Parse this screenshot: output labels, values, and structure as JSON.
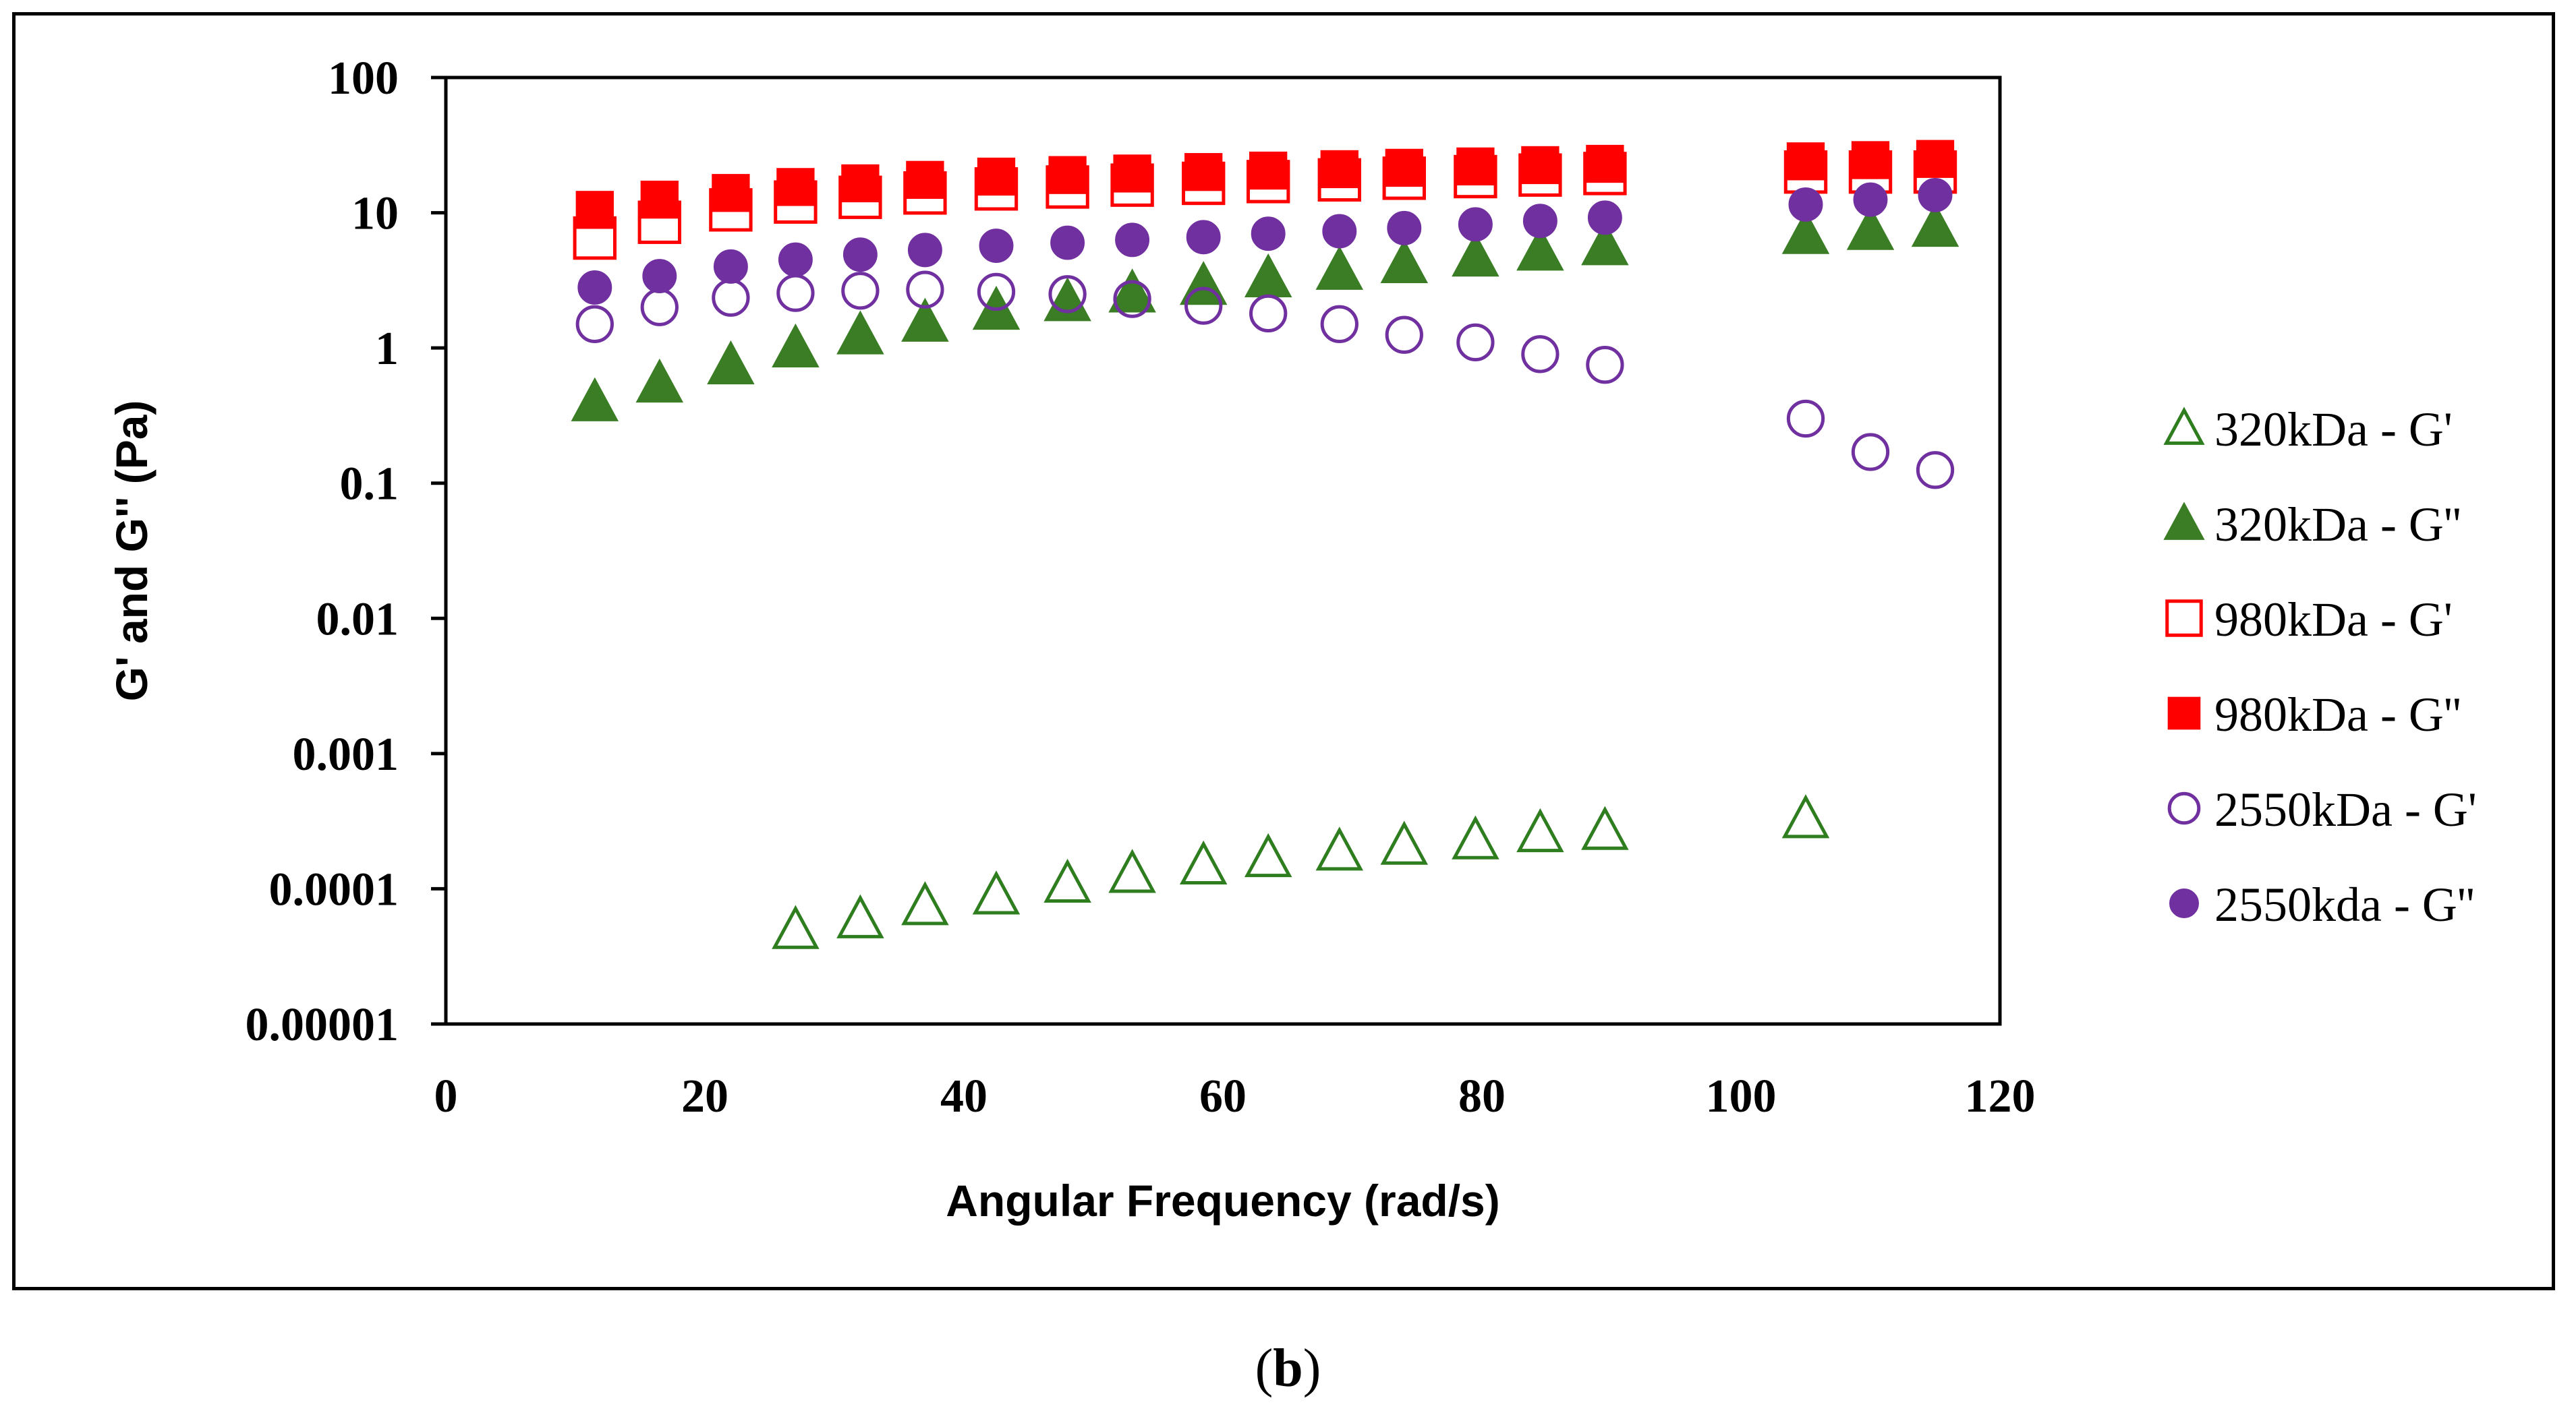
{
  "chart_data": {
    "type": "scatter",
    "title": "",
    "xlabel": "Angular Frequency (rad/s)",
    "ylabel": "G' and G'' (Pa)",
    "xlim": [
      0,
      120
    ],
    "ylim": [
      1e-05,
      100
    ],
    "yscale": "log",
    "x_ticks": [
      0,
      20,
      40,
      60,
      80,
      100,
      120
    ],
    "x_tick_labels": [
      "0",
      "20",
      "40",
      "60",
      "80",
      "100",
      "120"
    ],
    "y_ticks": [
      1e-05,
      0.0001,
      0.001,
      0.01,
      0.1,
      1,
      10,
      100
    ],
    "y_tick_labels": [
      "0.00001",
      "0.0001",
      "0.001",
      "0.01",
      "0.1",
      "1",
      "10",
      "100"
    ],
    "legend_position": "right",
    "series": [
      {
        "name": "320kDa - G'",
        "marker": "triangle-open",
        "color": "#2e7d1f",
        "x": [
          27,
          32,
          37,
          42.5,
          48,
          53,
          58.5,
          63.5,
          69,
          74,
          79.5,
          84.5,
          89.5,
          105
        ],
        "y": [
          5e-05,
          6e-05,
          7.5e-05,
          9e-05,
          0.00011,
          0.00013,
          0.00015,
          0.00017,
          0.00019,
          0.00021,
          0.00023,
          0.00026,
          0.00027,
          0.00033
        ]
      },
      {
        "name": "320kDa - G''",
        "marker": "triangle-filled",
        "color": "#3a7d24",
        "x": [
          11.5,
          16.5,
          22,
          27,
          32,
          37,
          42.5,
          48,
          53,
          58.5,
          63.5,
          69,
          74,
          79.5,
          84.5,
          89.5,
          105,
          110,
          115
        ],
        "y": [
          0.4,
          0.55,
          0.75,
          1.0,
          1.25,
          1.55,
          1.9,
          2.2,
          2.55,
          2.9,
          3.3,
          3.75,
          4.2,
          4.7,
          5.2,
          5.7,
          6.9,
          7.4,
          7.8
        ]
      },
      {
        "name": "980kDa - G'",
        "marker": "square-open",
        "color": "#ff0000",
        "x": [
          11.5,
          16.5,
          22,
          27,
          32,
          37,
          42.5,
          48,
          53,
          58.5,
          63.5,
          69,
          74,
          79.5,
          84.5,
          89.5,
          105,
          110,
          115
        ],
        "y": [
          6.5,
          8.5,
          10.5,
          12,
          13,
          14,
          15,
          15.5,
          16,
          16.5,
          17,
          17.5,
          18,
          18.5,
          19,
          19.5,
          20,
          20,
          20
        ]
      },
      {
        "name": "980kDa - G''",
        "marker": "square-filled",
        "color": "#ff0000",
        "x": [
          11.5,
          16.5,
          22,
          27,
          32,
          37,
          42.5,
          48,
          53,
          58.5,
          63.5,
          69,
          74,
          79.5,
          84.5,
          89.5,
          105,
          110,
          115
        ],
        "y": [
          10.5,
          12.5,
          14,
          15.5,
          16.5,
          17.5,
          18.5,
          19,
          19.5,
          20,
          20.5,
          21,
          21.5,
          22,
          22.5,
          23,
          24,
          24.5,
          25
        ]
      },
      {
        "name": "2550kDa - G'",
        "marker": "circle-open",
        "color": "#7030a0",
        "x": [
          11.5,
          16.5,
          22,
          27,
          32,
          37,
          42.5,
          48,
          53,
          58.5,
          63.5,
          69,
          74,
          79.5,
          84.5,
          89.5,
          105,
          110,
          115
        ],
        "y": [
          1.5,
          2.0,
          2.35,
          2.55,
          2.65,
          2.7,
          2.6,
          2.5,
          2.3,
          2.05,
          1.8,
          1.5,
          1.25,
          1.1,
          0.9,
          0.75,
          0.3,
          0.17,
          0.125
        ]
      },
      {
        "name": "2550kda - G''",
        "marker": "circle-filled",
        "color": "#7030a0",
        "x": [
          11.5,
          16.5,
          22,
          27,
          32,
          37,
          42.5,
          48,
          53,
          58.5,
          63.5,
          69,
          74,
          79.5,
          84.5,
          89.5,
          105,
          110,
          115
        ],
        "y": [
          2.8,
          3.4,
          4.0,
          4.5,
          4.9,
          5.3,
          5.7,
          6.0,
          6.3,
          6.6,
          7.0,
          7.3,
          7.7,
          8.2,
          8.7,
          9.2,
          11.5,
          12.5,
          13.5
        ]
      }
    ]
  },
  "caption": {
    "open": "(",
    "letter": "b",
    "close": ")"
  }
}
